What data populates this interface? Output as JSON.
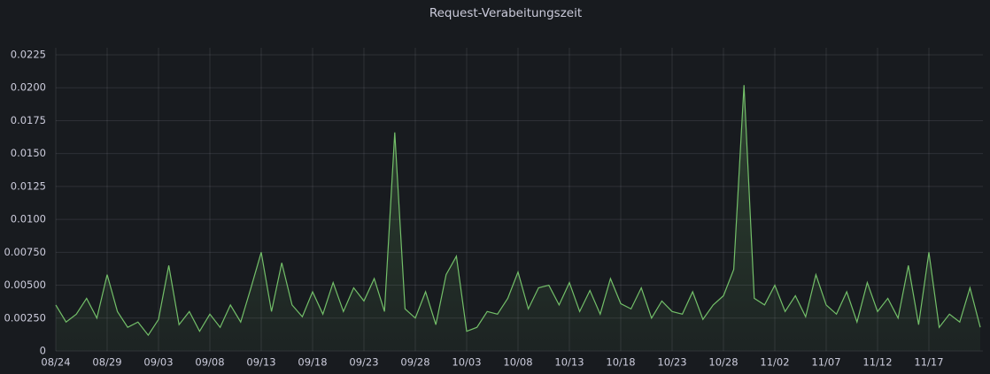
{
  "chart_data": {
    "type": "line",
    "title": "Request-Verabeitungszeit",
    "categories": [
      "08/24",
      null,
      null,
      null,
      null,
      "08/29",
      null,
      null,
      null,
      null,
      "09/03",
      null,
      null,
      null,
      null,
      "09/08",
      null,
      null,
      null,
      null,
      "09/13",
      null,
      null,
      null,
      null,
      "09/18",
      null,
      null,
      null,
      null,
      "09/23",
      null,
      null,
      null,
      null,
      "09/28",
      null,
      null,
      null,
      null,
      "10/03",
      null,
      null,
      null,
      null,
      "10/08",
      null,
      null,
      null,
      null,
      "10/13",
      null,
      null,
      null,
      null,
      "10/18",
      null,
      null,
      null,
      null,
      "10/23",
      null,
      null,
      null,
      null,
      "10/28",
      null,
      null,
      null,
      null,
      "11/02",
      null,
      null,
      null,
      null,
      "11/07",
      null,
      null,
      null,
      null,
      "11/12",
      null,
      null,
      null,
      null,
      "11/17",
      null,
      null,
      null,
      null,
      null
    ],
    "values": [
      0.0035,
      0.0022,
      0.0028,
      0.004,
      0.0025,
      0.0058,
      0.003,
      0.0018,
      0.0022,
      0.0012,
      0.0024,
      0.0065,
      0.002,
      0.003,
      0.0015,
      0.0028,
      0.0018,
      0.0035,
      0.0022,
      0.0048,
      0.0075,
      0.003,
      0.0067,
      0.0035,
      0.0026,
      0.0045,
      0.0028,
      0.0052,
      0.003,
      0.0048,
      0.0038,
      0.0055,
      0.003,
      0.0166,
      0.0032,
      0.0025,
      0.0045,
      0.002,
      0.0058,
      0.0072,
      0.0015,
      0.0018,
      0.003,
      0.0028,
      0.004,
      0.006,
      0.0032,
      0.0048,
      0.005,
      0.0035,
      0.0052,
      0.003,
      0.0046,
      0.0028,
      0.0055,
      0.0036,
      0.0032,
      0.0048,
      0.0025,
      0.0038,
      0.003,
      0.0028,
      0.0045,
      0.0024,
      0.0035,
      0.0042,
      0.0062,
      0.0202,
      0.004,
      0.0035,
      0.005,
      0.003,
      0.0042,
      0.0026,
      0.0058,
      0.0035,
      0.0028,
      0.0045,
      0.0022,
      0.0052,
      0.003,
      0.004,
      0.0025,
      0.0065,
      0.002,
      0.0075,
      0.0018,
      0.0028,
      0.0022,
      0.0048,
      0.0018
    ],
    "color": "#73bf69",
    "ylim": [
      0,
      0.0225
    ],
    "yticks": [
      0,
      {
        "value": 0.0025,
        "label": "0.00250"
      },
      {
        "value": 0.005,
        "label": "0.00500"
      },
      {
        "value": 0.0075,
        "label": "0.00750"
      },
      {
        "value": 0.01,
        "label": "0.0100"
      },
      0.0125,
      {
        "value": 0.015,
        "label": "0.0150"
      },
      0.0175,
      {
        "value": 0.02,
        "label": "0.0200"
      },
      0.0225
    ],
    "grid": true
  }
}
